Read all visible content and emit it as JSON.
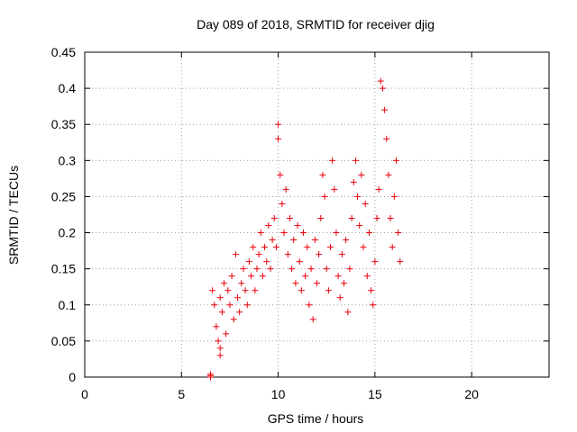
{
  "chart_data": {
    "type": "scatter",
    "title": "Day 089 of 2018, SRMTID for receiver djig",
    "xlabel": "GPS time / hours",
    "ylabel": "SRMTID / TECUs",
    "xlim": [
      0,
      24
    ],
    "ylim": [
      0,
      0.45
    ],
    "xticks": [
      0,
      5,
      10,
      15,
      20
    ],
    "yticks": [
      0,
      0.05,
      0.1,
      0.15,
      0.2,
      0.25,
      0.3,
      0.35,
      0.4,
      0.45
    ],
    "xtick_labels": [
      "0",
      "5",
      "10",
      "15",
      "20"
    ],
    "ytick_labels": [
      "0",
      "0.05",
      "0.1",
      "0.15",
      "0.2",
      "0.25",
      "0.3",
      "0.35",
      "0.4",
      "0.45"
    ],
    "grid": true,
    "marker": "+",
    "series": [
      {
        "name": "SRMTID",
        "color": "#e8000b",
        "points": [
          [
            6.5,
            0.0
          ],
          [
            6.5,
            0.002
          ],
          [
            6.5,
            0.004
          ],
          [
            6.6,
            0.12
          ],
          [
            6.7,
            0.1
          ],
          [
            6.8,
            0.07
          ],
          [
            6.9,
            0.05
          ],
          [
            7.0,
            0.04
          ],
          [
            7.0,
            0.03
          ],
          [
            7.0,
            0.11
          ],
          [
            7.1,
            0.09
          ],
          [
            7.2,
            0.13
          ],
          [
            7.3,
            0.06
          ],
          [
            7.4,
            0.12
          ],
          [
            7.5,
            0.1
          ],
          [
            7.6,
            0.14
          ],
          [
            7.7,
            0.08
          ],
          [
            7.8,
            0.17
          ],
          [
            7.9,
            0.11
          ],
          [
            8.0,
            0.09
          ],
          [
            8.1,
            0.13
          ],
          [
            8.2,
            0.15
          ],
          [
            8.3,
            0.12
          ],
          [
            8.4,
            0.1
          ],
          [
            8.5,
            0.16
          ],
          [
            8.6,
            0.14
          ],
          [
            8.7,
            0.18
          ],
          [
            8.8,
            0.12
          ],
          [
            8.9,
            0.15
          ],
          [
            9.0,
            0.17
          ],
          [
            9.1,
            0.2
          ],
          [
            9.2,
            0.14
          ],
          [
            9.3,
            0.18
          ],
          [
            9.4,
            0.16
          ],
          [
            9.5,
            0.21
          ],
          [
            9.6,
            0.15
          ],
          [
            9.7,
            0.19
          ],
          [
            9.8,
            0.22
          ],
          [
            9.9,
            0.18
          ],
          [
            10.0,
            0.35
          ],
          [
            10.0,
            0.33
          ],
          [
            10.1,
            0.28
          ],
          [
            10.2,
            0.24
          ],
          [
            10.3,
            0.2
          ],
          [
            10.4,
            0.26
          ],
          [
            10.5,
            0.17
          ],
          [
            10.6,
            0.22
          ],
          [
            10.7,
            0.15
          ],
          [
            10.8,
            0.19
          ],
          [
            10.9,
            0.13
          ],
          [
            11.0,
            0.21
          ],
          [
            11.1,
            0.16
          ],
          [
            11.2,
            0.12
          ],
          [
            11.3,
            0.2
          ],
          [
            11.4,
            0.14
          ],
          [
            11.5,
            0.18
          ],
          [
            11.6,
            0.1
          ],
          [
            11.7,
            0.15
          ],
          [
            11.8,
            0.08
          ],
          [
            11.9,
            0.19
          ],
          [
            12.0,
            0.13
          ],
          [
            12.1,
            0.17
          ],
          [
            12.2,
            0.22
          ],
          [
            12.3,
            0.28
          ],
          [
            12.4,
            0.25
          ],
          [
            12.5,
            0.15
          ],
          [
            12.6,
            0.12
          ],
          [
            12.7,
            0.18
          ],
          [
            12.8,
            0.3
          ],
          [
            12.9,
            0.26
          ],
          [
            13.0,
            0.2
          ],
          [
            13.1,
            0.14
          ],
          [
            13.2,
            0.11
          ],
          [
            13.3,
            0.17
          ],
          [
            13.4,
            0.13
          ],
          [
            13.5,
            0.19
          ],
          [
            13.6,
            0.09
          ],
          [
            13.7,
            0.15
          ],
          [
            13.8,
            0.22
          ],
          [
            13.9,
            0.27
          ],
          [
            14.0,
            0.3
          ],
          [
            14.1,
            0.25
          ],
          [
            14.2,
            0.21
          ],
          [
            14.3,
            0.28
          ],
          [
            14.4,
            0.18
          ],
          [
            14.5,
            0.24
          ],
          [
            14.6,
            0.14
          ],
          [
            14.7,
            0.2
          ],
          [
            14.8,
            0.12
          ],
          [
            14.9,
            0.1
          ],
          [
            15.0,
            0.16
          ],
          [
            15.1,
            0.22
          ],
          [
            15.2,
            0.26
          ],
          [
            15.3,
            0.41
          ],
          [
            15.4,
            0.4
          ],
          [
            15.5,
            0.37
          ],
          [
            15.6,
            0.33
          ],
          [
            15.7,
            0.28
          ],
          [
            15.8,
            0.22
          ],
          [
            15.9,
            0.18
          ],
          [
            16.0,
            0.25
          ],
          [
            16.1,
            0.3
          ],
          [
            16.2,
            0.2
          ],
          [
            16.3,
            0.16
          ]
        ]
      }
    ]
  }
}
